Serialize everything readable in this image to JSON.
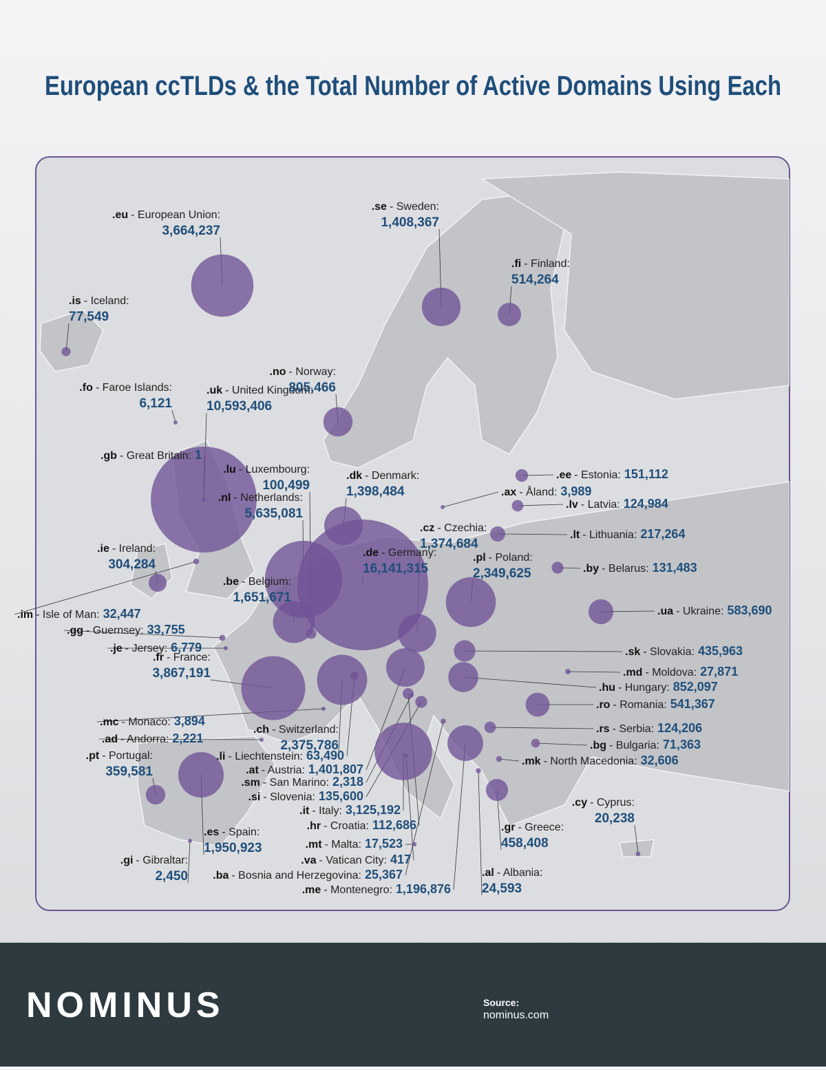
{
  "title": "European ccTLDs & the Total Number of Active Domains Using Each",
  "entries": [
    {
      "tld": ".eu",
      "name": "- European Union:",
      "value": 3664237,
      "label": "3,664,237"
    },
    {
      "tld": ".is",
      "name": "- Iceland:",
      "value": 77549,
      "label": "77,549"
    },
    {
      "tld": ".se",
      "name": "- Sweden:",
      "value": 1408367,
      "label": "1,408,367"
    },
    {
      "tld": ".fi",
      "name": "- Finland:",
      "value": 514264,
      "label": "514,264"
    },
    {
      "tld": ".fo",
      "name": "- Faroe Islands:",
      "value": 6121,
      "label": "6,121"
    },
    {
      "tld": ".uk",
      "name": "- United Kingdom:",
      "value": 10593406,
      "label": "10,593,406"
    },
    {
      "tld": ".no",
      "name": "- Norway:",
      "value": 805466,
      "label": "805,466"
    },
    {
      "tld": ".gb",
      "name": "- Great Britain:",
      "value": 1,
      "label": "1"
    },
    {
      "tld": ".lu",
      "name": "- Luxembourg:",
      "value": 100499,
      "label": "100,499"
    },
    {
      "tld": ".nl",
      "name": "- Netherlands:",
      "value": 5635081,
      "label": "5,635,081"
    },
    {
      "tld": ".dk",
      "name": "- Denmark:",
      "value": 1398484,
      "label": "1,398,484"
    },
    {
      "tld": ".ee",
      "name": "- Estonia:",
      "value": 151112,
      "label": "151,112"
    },
    {
      "tld": ".ax",
      "name": "- Åland:",
      "value": 3989,
      "label": "3,989"
    },
    {
      "tld": ".lv",
      "name": "- Latvia:",
      "value": 124984,
      "label": "124,984"
    },
    {
      "tld": ".lt",
      "name": "- Lithuania:",
      "value": 217264,
      "label": "217,264"
    },
    {
      "tld": ".cz",
      "name": "- Czechia:",
      "value": 1374684,
      "label": "1,374,684"
    },
    {
      "tld": ".de",
      "name": "- Germany:",
      "value": 16141315,
      "label": "16,141,315"
    },
    {
      "tld": ".ie",
      "name": "- Ireland:",
      "value": 304284,
      "label": "304,284"
    },
    {
      "tld": ".pl",
      "name": "- Poland:",
      "value": 2349625,
      "label": "2,349,625"
    },
    {
      "tld": ".by",
      "name": "- Belarus:",
      "value": 131483,
      "label": "131,483"
    },
    {
      "tld": ".be",
      "name": "- Belgium:",
      "value": 1651671,
      "label": "1,651,671"
    },
    {
      "tld": ".im",
      "name": "- Isle of Man:",
      "value": 32447,
      "label": "32,447"
    },
    {
      "tld": ".ua",
      "name": "- Ukraine:",
      "value": 583690,
      "label": "583,690"
    },
    {
      "tld": ".gg",
      "name": "- Guernsey:",
      "value": 33755,
      "label": "33,755"
    },
    {
      "tld": ".je",
      "name": "- Jersey:",
      "value": 6779,
      "label": "6,779"
    },
    {
      "tld": ".sk",
      "name": "- Slovakia:",
      "value": 435963,
      "label": "435,963"
    },
    {
      "tld": ".fr",
      "name": "- France:",
      "value": 3867191,
      "label": "3,867,191"
    },
    {
      "tld": ".md",
      "name": "- Moldova:",
      "value": 27871,
      "label": "27,871"
    },
    {
      "tld": ".hu",
      "name": "- Hungary:",
      "value": 852097,
      "label": "852,097"
    },
    {
      "tld": ".ch",
      "name": "- Switzerland:",
      "value": 2375786,
      "label": "2,375,786"
    },
    {
      "tld": ".mc",
      "name": "- Monaco:",
      "value": 3894,
      "label": "3,894"
    },
    {
      "tld": ".ro",
      "name": "- Romania:",
      "value": 541367,
      "label": "541,367"
    },
    {
      "tld": ".ad",
      "name": "- Andorra:",
      "value": 2221,
      "label": "2,221"
    },
    {
      "tld": ".rs",
      "name": "- Serbia:",
      "value": 124206,
      "label": "124,206"
    },
    {
      "tld": ".li",
      "name": "- Liechtenstein:",
      "value": 63490,
      "label": "63,490"
    },
    {
      "tld": ".pt",
      "name": "- Portugal:",
      "value": 359581,
      "label": "359,581"
    },
    {
      "tld": ".es",
      "name": "- Spain:",
      "value": 1950923,
      "label": "1,950,923"
    },
    {
      "tld": ".bg",
      "name": "- Bulgaria:",
      "value": 71363,
      "label": "71,363"
    },
    {
      "tld": ".at",
      "name": "- Austria:",
      "value": 1401807,
      "label": "1,401,807"
    },
    {
      "tld": ".mk",
      "name": "- North Macedonia:",
      "value": 32606,
      "label": "32,606"
    },
    {
      "tld": ".sm",
      "name": "- San Marino:",
      "value": 2318,
      "label": "2,318"
    },
    {
      "tld": ".it",
      "name": "- Italy:",
      "value": 3125192,
      "label": "3,125,192"
    },
    {
      "tld": ".si",
      "name": "- Slovenia:",
      "value": 135600,
      "label": "135,600"
    },
    {
      "tld": ".hr",
      "name": "- Croatia:",
      "value": 112686,
      "label": "112,686"
    },
    {
      "tld": ".gr",
      "name": "- Greece:",
      "value": 458408,
      "label": "458,408"
    },
    {
      "tld": ".cy",
      "name": "- Cyprus:",
      "value": 20238,
      "label": "20,238"
    },
    {
      "tld": ".mt",
      "name": "- Malta:",
      "value": 17523,
      "label": "17,523"
    },
    {
      "tld": ".gi",
      "name": "- Gibraltar:",
      "value": 2450,
      "label": "2,450"
    },
    {
      "tld": ".va",
      "name": "- Vatican City:",
      "value": 417,
      "label": "417"
    },
    {
      "tld": ".ba",
      "name": "- Bosnia and Herzegovina:",
      "value": 25367,
      "label": "25,367"
    },
    {
      "tld": ".me",
      "name": "- Montenegro:",
      "value": 1196876,
      "label": "1,196,876"
    },
    {
      "tld": ".al",
      "name": "- Albania:",
      "value": 24593,
      "label": "24,593"
    }
  ],
  "brand": "NOMINUS",
  "source": {
    "heading": "Source:",
    "text": "nominus.com"
  }
}
